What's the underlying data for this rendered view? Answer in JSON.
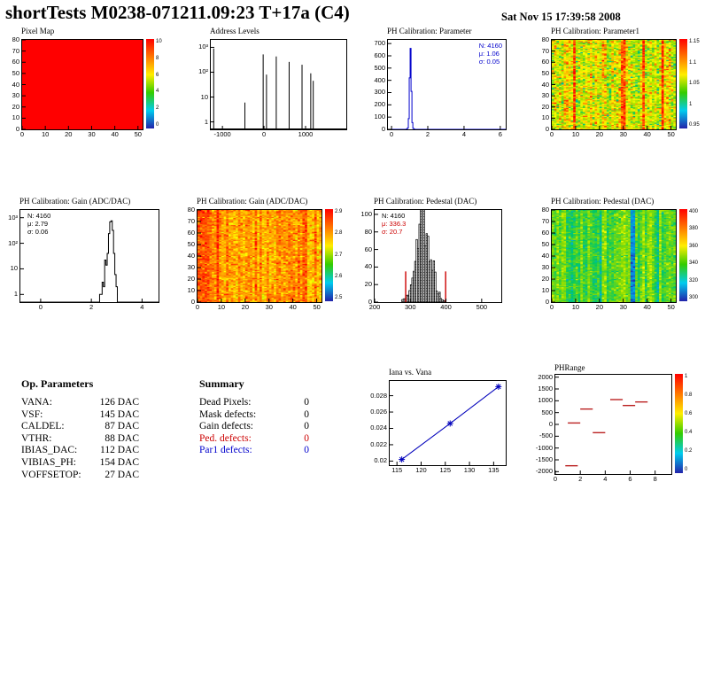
{
  "header": {
    "title": "shortTests M0238-071211.09:23 T+17a (C4)",
    "date": "Sat Nov 15 17:39:58 2008"
  },
  "op_parameters": {
    "title": "Op. Parameters",
    "rows": [
      {
        "label": "VANA:",
        "value": "126 DAC"
      },
      {
        "label": "VSF:",
        "value": "145 DAC"
      },
      {
        "label": "CALDEL:",
        "value": "87 DAC"
      },
      {
        "label": "VTHR:",
        "value": "88 DAC"
      },
      {
        "label": "IBIAS_DAC:",
        "value": "112 DAC"
      },
      {
        "label": "VIBIAS_PH:",
        "value": "154 DAC"
      },
      {
        "label": "VOFFSETOP:",
        "value": "27 DAC"
      }
    ]
  },
  "summary": {
    "title": "Summary",
    "rows": [
      {
        "label": "Dead Pixels:",
        "value": "0",
        "color": "#000000"
      },
      {
        "label": "Mask defects:",
        "value": "0",
        "color": "#000000"
      },
      {
        "label": "Gain defects:",
        "value": "0",
        "color": "#000000"
      },
      {
        "label": "Ped. defects:",
        "value": "0",
        "color": "#cc0000"
      },
      {
        "label": "Par1 defects:",
        "value": "0",
        "color": "#0000cc"
      }
    ]
  },
  "colors": {
    "accent_red": "#cc0000",
    "accent_blue": "#0000cc"
  },
  "chart_data": [
    {
      "id": "pixel-map",
      "type": "heatmap",
      "title": "Pixel Map",
      "xlim": [
        0,
        52
      ],
      "ylim": [
        0,
        80
      ],
      "x_ticks": [
        0,
        10,
        20,
        30,
        40,
        50
      ],
      "y_ticks": [
        0,
        10,
        20,
        30,
        40,
        50,
        60,
        70,
        80
      ],
      "mode": "uniform",
      "uniform_value": 1,
      "colorbar_ticks": [
        "10",
        "8",
        "6",
        "4",
        "2",
        "0"
      ]
    },
    {
      "id": "address-levels",
      "type": "spikes",
      "title": "Address Levels",
      "xlim": [
        -1280,
        1980
      ],
      "x_ticks": [
        -1000,
        0,
        1000
      ],
      "log_y": true,
      "y_decades": [
        1,
        10,
        100,
        1000
      ],
      "y_decade_labels": [
        "1",
        "10",
        "10²",
        "10³"
      ],
      "spikes": [
        [
          -1210,
          900
        ],
        [
          -460,
          6
        ],
        [
          -20,
          520
        ],
        [
          60,
          80
        ],
        [
          295,
          430
        ],
        [
          605,
          260
        ],
        [
          915,
          200
        ],
        [
          1125,
          90
        ],
        [
          1185,
          45
        ]
      ]
    },
    {
      "id": "ph-parameter",
      "type": "hist_line",
      "title": "PH Calibration: Parameter",
      "xlim": [
        -0.2,
        6.3
      ],
      "x_ticks": [
        0,
        2,
        4,
        6
      ],
      "ylim": [
        0,
        730
      ],
      "y_ticks": [
        0,
        100,
        200,
        300,
        400,
        500,
        600,
        700
      ],
      "bin_width": 0.05,
      "bins": [
        [
          0.85,
          3
        ],
        [
          0.9,
          12
        ],
        [
          0.95,
          88
        ],
        [
          1.0,
          420
        ],
        [
          1.05,
          660
        ],
        [
          1.1,
          310
        ],
        [
          1.15,
          55
        ],
        [
          1.2,
          8
        ],
        [
          1.25,
          2
        ]
      ],
      "line_color": "#0000cc",
      "stats": {
        "pos": "tr",
        "lines": [
          {
            "text": "N: 4160",
            "color": "#0000cc"
          },
          {
            "text": "μ: 1.06",
            "color": "#0000cc"
          },
          {
            "text": "σ: 0.05",
            "color": "#0000cc"
          }
        ]
      }
    },
    {
      "id": "ph-parameter1-map",
      "type": "heatmap",
      "title": "PH Calibration: Parameter1",
      "xlim": [
        0,
        52
      ],
      "ylim": [
        0,
        80
      ],
      "x_ticks": [
        0,
        10,
        20,
        30,
        40,
        50
      ],
      "y_ticks": [
        0,
        10,
        20,
        30,
        40,
        50,
        60,
        70,
        80
      ],
      "mode": "noise",
      "noise": {
        "seed": 7,
        "base": 0.6,
        "amp": 0.34,
        "col_jitter": 0.1,
        "bands": [
          {
            "x": 9,
            "w": 1,
            "v": 0.93
          },
          {
            "x": 29,
            "w": 2,
            "v": 0.88
          },
          {
            "x": 38,
            "w": 1,
            "v": 0.9
          },
          {
            "x": 46,
            "w": 1,
            "v": 0.93
          }
        ]
      },
      "colorbar_ticks": [
        "1.15",
        "1.1",
        "1.05",
        "1",
        "0.95"
      ]
    },
    {
      "id": "gain-hist",
      "type": "hist_line",
      "title": "PH Calibration: Gain (ADC/DAC)",
      "xlim": [
        -0.8,
        4.65
      ],
      "x_ticks": [
        0,
        2,
        4
      ],
      "log_y": true,
      "y_decades": [
        1,
        10,
        100,
        1000
      ],
      "y_decade_labels": [
        "1",
        "10",
        "10²",
        "10³"
      ],
      "bin_width": 0.05,
      "bins": [
        [
          2.35,
          1
        ],
        [
          2.45,
          3
        ],
        [
          2.5,
          2
        ],
        [
          2.55,
          22
        ],
        [
          2.6,
          14
        ],
        [
          2.65,
          40
        ],
        [
          2.7,
          240
        ],
        [
          2.75,
          690
        ],
        [
          2.8,
          750
        ],
        [
          2.85,
          320
        ],
        [
          2.9,
          40
        ],
        [
          2.95,
          6
        ],
        [
          3.0,
          2
        ]
      ],
      "line_color": "#000000",
      "stats": {
        "pos": "tl",
        "lines": [
          {
            "text": "N: 4160",
            "color": "#000000"
          },
          {
            "text": "μ: 2.79",
            "color": "#000000"
          },
          {
            "text": "σ: 0.06",
            "color": "#000000"
          }
        ]
      }
    },
    {
      "id": "gain-map",
      "type": "heatmap",
      "title": "PH Calibration: Gain (ADC/DAC)",
      "xlim": [
        0,
        52
      ],
      "ylim": [
        0,
        80
      ],
      "x_ticks": [
        0,
        10,
        20,
        30,
        40,
        50
      ],
      "y_ticks": [
        0,
        10,
        20,
        30,
        40,
        50,
        60,
        70,
        80
      ],
      "mode": "noise",
      "noise": {
        "seed": 13,
        "base": 0.78,
        "amp": 0.2,
        "col_jitter": 0.06,
        "bands": [
          {
            "x": 0,
            "w": 5,
            "v": 0.88
          },
          {
            "x": 8,
            "w": 1,
            "v": 0.92
          },
          {
            "x": 44,
            "w": 2,
            "v": 0.86
          }
        ]
      },
      "colorbar_ticks": [
        "2.9",
        "2.8",
        "2.7",
        "2.6",
        "2.5"
      ]
    },
    {
      "id": "pedestal-hist",
      "type": "hist_bars",
      "title": "PH Calibration: Pedestal (DAC)",
      "xlim": [
        200,
        555
      ],
      "x_ticks": [
        200,
        300,
        400,
        500
      ],
      "ylim": [
        0,
        105
      ],
      "y_ticks": [
        0,
        20,
        40,
        60,
        80,
        100
      ],
      "gauss": {
        "mu": 336,
        "sigma": 21,
        "peak": 95,
        "bin": 4,
        "range": [
          268,
          410
        ],
        "seed": 99
      },
      "red_lines": [
        {
          "x": 287,
          "h": 35
        },
        {
          "x": 399,
          "h": 35
        }
      ],
      "stats": {
        "pos": "tl",
        "lines": [
          {
            "text": "N: 4160",
            "color": "#000000"
          },
          {
            "text": "μ: 336.3",
            "color": "#cc0000"
          },
          {
            "text": "σ: 20.7",
            "color": "#cc0000"
          }
        ]
      }
    },
    {
      "id": "pedestal-map",
      "type": "heatmap",
      "title": "PH Calibration: Pedestal (DAC)",
      "xlim": [
        0,
        52
      ],
      "ylim": [
        0,
        80
      ],
      "x_ticks": [
        0,
        10,
        20,
        30,
        40,
        50
      ],
      "y_ticks": [
        0,
        10,
        20,
        30,
        40,
        50,
        60,
        70,
        80
      ],
      "mode": "noise",
      "noise": {
        "seed": 21,
        "base": 0.45,
        "amp": 0.16,
        "col_jitter": 0.08,
        "bands": [
          {
            "x": 33,
            "w": 2,
            "v": 0.14
          },
          {
            "x": 20,
            "w": 1,
            "v": 0.3
          },
          {
            "x": 8,
            "w": 1,
            "v": 0.34
          },
          {
            "x": 44,
            "w": 1,
            "v": 0.3
          }
        ]
      },
      "colorbar_ticks": [
        "400",
        "380",
        "360",
        "340",
        "320",
        "300"
      ]
    },
    {
      "id": "iana-vana",
      "type": "scatter_line",
      "title": "Iana vs. Vana",
      "xlim": [
        113.5,
        137.5
      ],
      "x_ticks": [
        115,
        120,
        125,
        130,
        135
      ],
      "ylim": [
        0.0195,
        0.0298
      ],
      "y_ticks": [
        0.02,
        0.022,
        0.024,
        0.026,
        0.028
      ],
      "points": [
        [
          116,
          0.0202
        ],
        [
          126,
          0.0246
        ],
        [
          136,
          0.0291
        ]
      ],
      "line_color": "#0000bb"
    },
    {
      "id": "phrange",
      "type": "segments",
      "title": "PHRange",
      "xlim": [
        0,
        9.3
      ],
      "x_ticks": [
        0,
        2,
        4,
        6,
        8
      ],
      "ylim": [
        -2100,
        2100
      ],
      "y_ticks": [
        2000,
        1500,
        1000,
        500,
        0,
        -500,
        -1000,
        -1500,
        -2000
      ],
      "segments": [
        [
          1.0,
          2.0,
          60
        ],
        [
          2.0,
          3.0,
          650
        ],
        [
          4.4,
          5.4,
          1050
        ],
        [
          5.4,
          6.4,
          800
        ],
        [
          6.4,
          7.4,
          950
        ],
        [
          3.0,
          4.0,
          -350
        ],
        [
          0.8,
          1.8,
          -1750
        ]
      ],
      "seg_color": "#bb2222",
      "colorbar_ticks": [
        "1",
        "0.8",
        "0.6",
        "0.4",
        "0.2",
        "0"
      ]
    }
  ]
}
